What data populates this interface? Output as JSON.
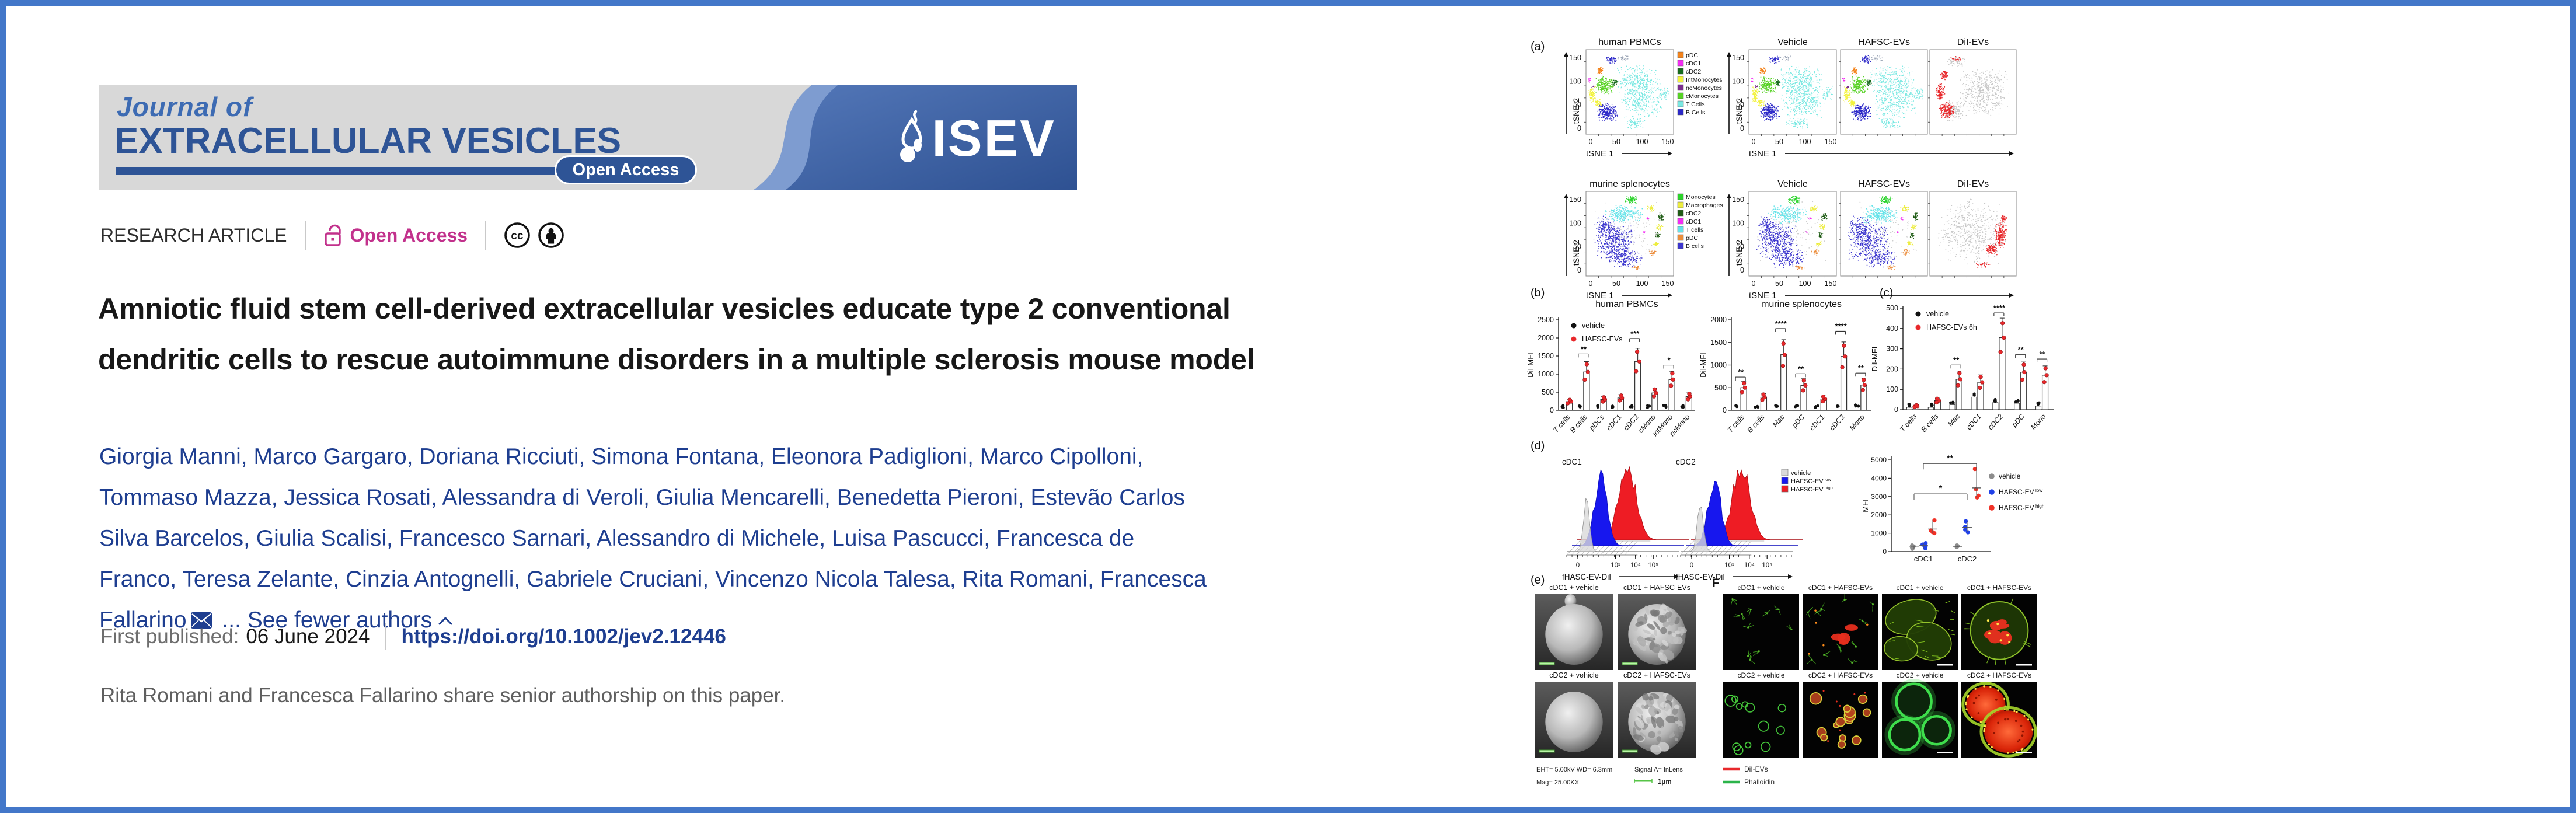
{
  "banner": {
    "journal_of": "Journal of",
    "title": "EXTRACELLULAR VESICLES",
    "open_access_badge": "Open Access",
    "society": "ISEV",
    "grey": "#d8d8d8",
    "blue": "#2e5496"
  },
  "meta": {
    "article_type": "RESEARCH ARTICLE",
    "open_access": "Open Access",
    "oa_color": "#c2318c"
  },
  "title": "Amniotic fluid stem cell-derived extracellular vesicles educate type 2 conventional dendritic cells to rescue autoimmune disorders in a multiple sclerosis mouse model",
  "authors": {
    "names": [
      "Giorgia Manni",
      "Marco Gargaro",
      "Doriana Ricciuti",
      "Simona Fontana",
      "Eleonora Padiglioni",
      "Marco Cipolloni",
      "Tommaso Mazza",
      "Jessica Rosati",
      "Alessandra di Veroli",
      "Giulia Mencarelli",
      "Benedetta Pieroni",
      "Estevão Carlos Silva Barcelos",
      "Giulia Scalisi",
      "Francesco Sarnari",
      "Alessandro di Michele",
      "Luisa Pascucci",
      "Francesca de Franco",
      "Teresa Zelante",
      "Cinzia Antognelli",
      "Gabriele Cruciani",
      "Vincenzo Nicola Talesa",
      "Rita Romani",
      "Francesca Fallarino"
    ],
    "ellipsis": "...",
    "see_fewer": "See fewer authors"
  },
  "published": {
    "label": "First published:",
    "date": "06 June 2024",
    "doi": "https://doi.org/10.1002/jev2.12446"
  },
  "note": "Rita Romani and Francesca Fallarino share senior authorship on this paper.",
  "figure": {
    "a": {
      "label": "(a)",
      "cols": [
        "Vehicle",
        "HAFSC-EVs",
        "DiI-EVs"
      ],
      "xlabel": "tSNE 1",
      "ylabel": "tSNE 2",
      "ticks": [
        0,
        50,
        100,
        150
      ],
      "rows": [
        {
          "title": "human PBMCs",
          "legend": [
            [
              "pDC",
              "#F4831B"
            ],
            [
              "cDC1",
              "#F32CF3"
            ],
            [
              "cDC2",
              "#166A1C"
            ],
            [
              "IntMonocytes",
              "#F2F23D"
            ],
            [
              "ncMonocytes",
              "#7B2D8E"
            ],
            [
              "cMonocytes",
              "#56D224"
            ],
            [
              "T Cells",
              "#79E8E2"
            ],
            [
              "B Cells",
              "#2B27C8"
            ]
          ]
        },
        {
          "title": "murine splenocytes",
          "legend": [
            [
              "Monocytes",
              "#2BD32B"
            ],
            [
              "Macrophages",
              "#EDED3E"
            ],
            [
              "cDC2",
              "#1E5B14"
            ],
            [
              "cDC1",
              "#F32CF3"
            ],
            [
              "T cells",
              "#64E3E9"
            ],
            [
              "pDC",
              "#EB8D3C"
            ],
            [
              "B cells",
              "#3B35CE"
            ]
          ]
        }
      ],
      "dii_color": "#E8282B"
    },
    "b": {
      "label": "(b)"
    },
    "c": {
      "label": "(c)"
    },
    "d": {
      "label": "(d)"
    },
    "e": {
      "label": "(e)",
      "titles": [
        "cDC1 + vehicle",
        "cDC1 + HAFSC-EVs",
        "cDC2 + vehicle",
        "cDC2 + HAFSC-EVs"
      ],
      "cap_left1": "EHT= 5.00kV  WD= 6.3mm",
      "cap_left2": "Mag= 25.00KX",
      "cap_right": "Signal A= InLens",
      "scale": "1μm"
    },
    "f": {
      "label": "F",
      "row1": [
        "cDC1 + vehicle",
        "cDC1 + HAFSC-EVs",
        "cDC1 + vehicle",
        "cDC1 + HAFSC-EVs"
      ],
      "row2": [
        "cDC2 + vehicle",
        "cDC2 + HAFSC-EVs",
        "cDC2 + vehicle",
        "cDC2 + HAFSC-EVs"
      ],
      "legend": [
        [
          "DiI-EVs",
          "#E8282B"
        ],
        [
          "Phalloidin",
          "#2BB44A"
        ]
      ]
    }
  },
  "chart_data": [
    {
      "type": "scatter",
      "subtype": "tSNE",
      "title": "human PBMCs",
      "conditions": [
        "Vehicle",
        "HAFSC-EVs",
        "DiI-EVs"
      ],
      "xlabel": "tSNE 1",
      "ylabel": "tSNE 2",
      "ticks": [
        0,
        50,
        100,
        150
      ],
      "populations": [
        "pDC",
        "cDC1",
        "cDC2",
        "IntMonocytes",
        "ncMonocytes",
        "cMonocytes",
        "T Cells",
        "B Cells"
      ]
    },
    {
      "type": "scatter",
      "subtype": "tSNE",
      "title": "murine splenocytes",
      "conditions": [
        "Vehicle",
        "HAFSC-EVs",
        "DiI-EVs"
      ],
      "xlabel": "tSNE 1",
      "ylabel": "tSNE 2",
      "ticks": [
        0,
        50,
        100,
        150
      ],
      "populations": [
        "Monocytes",
        "Macrophages",
        "cDC2",
        "cDC1",
        "T cells",
        "pDC",
        "B cells"
      ]
    },
    {
      "type": "bar",
      "panel": "b",
      "title": "human PBMCs",
      "ylabel": "DiI-MFI",
      "ylim": [
        0,
        2500
      ],
      "yticks": [
        0,
        500,
        1000,
        1500,
        2000,
        2500
      ],
      "categories": [
        "T cells",
        "B cells",
        "pDCs",
        "cDC1",
        "cDC2",
        "cMono",
        "intMono",
        "ncMono"
      ],
      "series": [
        {
          "name": "vehicle",
          "color": "#111111",
          "values": [
            15,
            20,
            15,
            20,
            40,
            25,
            20,
            15
          ]
        },
        {
          "name": "HAFSC-EVs",
          "color": "#e8282b",
          "values": [
            240,
            1060,
            300,
            340,
            1350,
            480,
            850,
            380
          ]
        }
      ],
      "sig": [
        "",
        "**",
        "",
        "",
        "***",
        "",
        "*",
        ""
      ],
      "legend_visible": true
    },
    {
      "type": "bar",
      "panel": "b",
      "title": "murine splenocytes",
      "ylabel": "DiI-MFI",
      "ylim": [
        0,
        2000
      ],
      "yticks": [
        0,
        500,
        1000,
        1500,
        2000
      ],
      "categories": [
        "T cells",
        "B cells",
        "Mac",
        "pDC",
        "cDC1",
        "cDC2",
        "Mono"
      ],
      "series": [
        {
          "name": "vehicle",
          "color": "#111111",
          "values": [
            20,
            15,
            25,
            25,
            20,
            30,
            50
          ]
        },
        {
          "name": "HAFSC-EVs",
          "color": "#e8282b",
          "values": [
            500,
            290,
            1230,
            550,
            250,
            1190,
            560
          ]
        }
      ],
      "sig": [
        "**",
        "",
        "****",
        "**",
        "",
        "****",
        "**"
      ],
      "legend_visible": false
    },
    {
      "type": "bar",
      "panel": "c",
      "title": "",
      "ylabel": "DiI-MFI",
      "ylim": [
        0,
        500
      ],
      "yticks": [
        0,
        100,
        200,
        300,
        400,
        500
      ],
      "categories": [
        "T cells",
        "B cells",
        "Mac",
        "cDC1",
        "cDC2",
        "pDC",
        "Mono"
      ],
      "series": [
        {
          "name": "vehicle",
          "color": "#111111",
          "values": [
            12,
            12,
            25,
            62,
            35,
            32,
            18
          ]
        },
        {
          "name": "HAFSC-EVs 6h",
          "color": "#e8282b",
          "values": [
            18,
            45,
            150,
            135,
            355,
            185,
            170
          ]
        }
      ],
      "sig": [
        "",
        "",
        "**",
        "",
        "****",
        "**",
        "**"
      ],
      "legend_visible": true
    },
    {
      "type": "histogram",
      "panel": "d",
      "titles": [
        "cDC1",
        "cDC2"
      ],
      "xlabel": "fHASC-EV-DiI",
      "xticks": [
        "0",
        "10³",
        "10⁴",
        "10⁵"
      ],
      "series": [
        {
          "name": "vehicle",
          "sup": "",
          "color": "#d9d9d9"
        },
        {
          "name": "HAFSC-EV",
          "sup": "low",
          "color": "#1717ee"
        },
        {
          "name": "HAFSC-EV",
          "sup": "high",
          "color": "#ee1c24"
        }
      ]
    },
    {
      "type": "scatter",
      "panel": "d",
      "ylabel": "MFI",
      "ylim": [
        0,
        5000
      ],
      "yticks": [
        0,
        1000,
        2000,
        3000,
        4000,
        5000
      ],
      "categories": [
        "cDC1",
        "cDC2"
      ],
      "series": [
        {
          "name": "vehicle",
          "sup": "",
          "color": "#8c8c8c",
          "values": {
            "cDC1": [
              150,
              220,
              280,
              330
            ],
            "cDC2": [
              240,
              280,
              300,
              330
            ]
          }
        },
        {
          "name": "HAFSC-EV",
          "sup": "low",
          "color": "#2041e8",
          "values": {
            "cDC1": [
              180,
              260,
              380,
              460
            ],
            "cDC2": [
              1050,
              1200,
              1350,
              1650
            ]
          }
        },
        {
          "name": "HAFSC-EV",
          "sup": "high",
          "color": "#f03126",
          "values": {
            "cDC1": [
              1000,
              1060,
              1150,
              1700
            ],
            "cDC2": [
              2950,
              3050,
              3400,
              4500
            ]
          }
        }
      ],
      "sig": [
        {
          "label": "*",
          "y": 3150
        },
        {
          "label": "**",
          "y": 4800
        }
      ]
    }
  ]
}
